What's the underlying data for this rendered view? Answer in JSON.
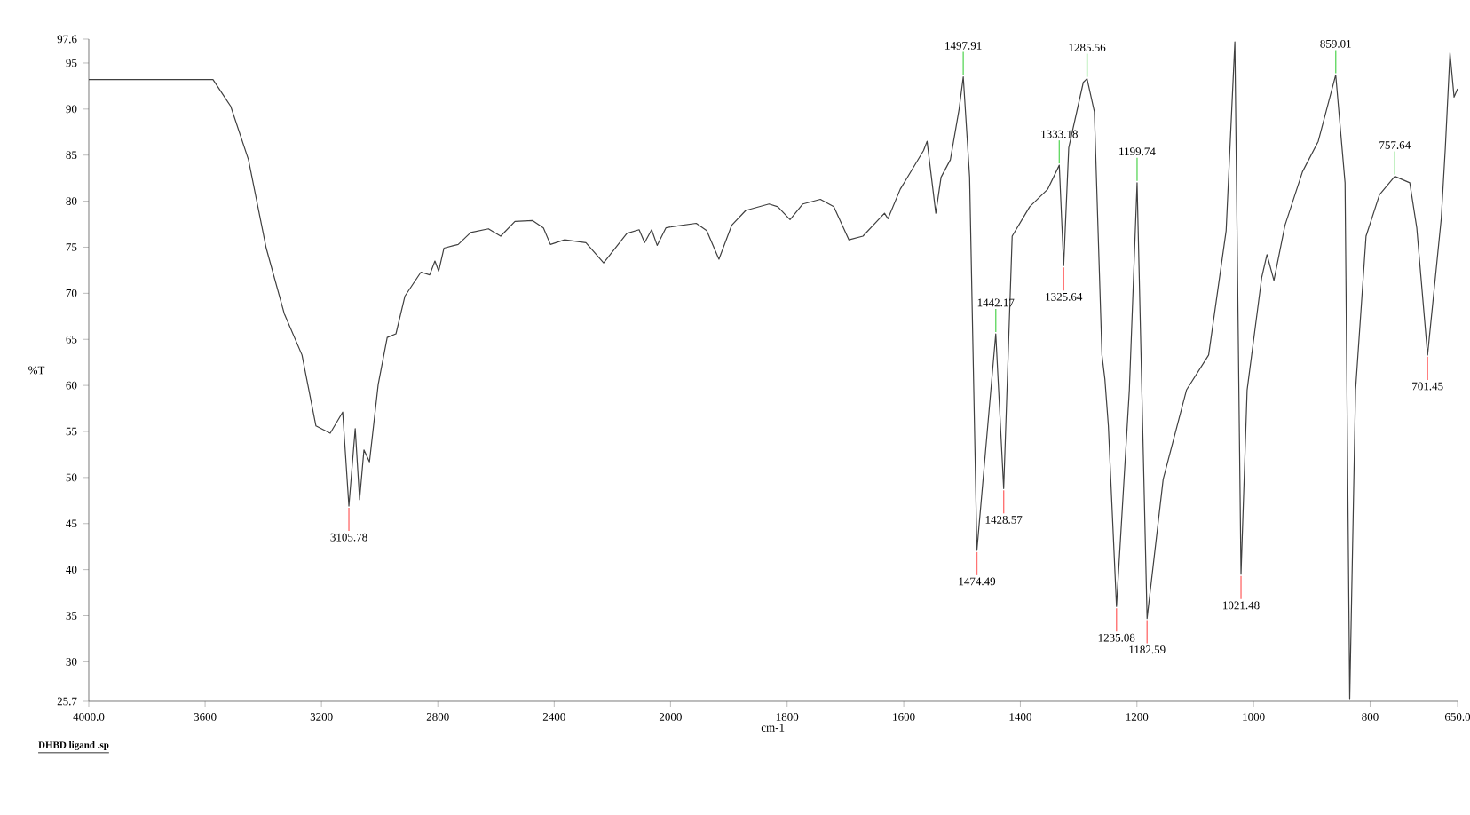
{
  "chart_data": [
    {
      "type": "line",
      "ylabel": "%T",
      "xlim": [
        4000,
        2000
      ],
      "ylim": [
        25.7,
        97.6
      ],
      "xticks": [
        {
          "value": 4000,
          "label": "4000.0"
        },
        3600,
        3200,
        2800,
        2400,
        2000
      ],
      "yticks": [
        25.7,
        30,
        35,
        40,
        45,
        50,
        55,
        60,
        65,
        70,
        75,
        80,
        85,
        90,
        95,
        97.6
      ],
      "series": [
        {
          "color": "#404040",
          "x": [
            4000,
            3573,
            3512,
            3451,
            3390,
            3328,
            3267,
            3219,
            3170,
            3127,
            3105.78,
            3084,
            3069,
            3054,
            3035,
            3005,
            2974,
            2944,
            2913,
            2858,
            2828,
            2810,
            2797,
            2779,
            2730,
            2687,
            2626,
            2584,
            2535,
            2474,
            2437,
            2413,
            2364,
            2291,
            2230,
            2150,
            2108,
            2089,
            2065,
            2046,
            2016,
            2000
          ],
          "values": [
            93.2,
            93.2,
            90.3,
            84.5,
            74.9,
            67.8,
            63.3,
            55.6,
            54.8,
            57.1,
            46.9,
            55.3,
            47.6,
            53.0,
            51.7,
            60.1,
            65.2,
            65.6,
            69.7,
            72.3,
            72.0,
            73.5,
            72.4,
            74.9,
            75.3,
            76.6,
            77.0,
            76.2,
            77.8,
            77.9,
            77.1,
            75.3,
            75.8,
            75.5,
            73.3,
            76.5,
            76.9,
            75.5,
            76.9,
            75.2,
            77.1,
            77.2
          ]
        }
      ],
      "annotations": [
        {
          "text": "3105.78",
          "x": 3105.78,
          "y": 46.9
        },
        "DHBD ligand .sp"
      ]
    },
    {
      "type": "line",
      "xlabel": "cm-1",
      "tick_labels": "x",
      "xlim": [
        2000,
        650
      ],
      "ylim": [
        25.7,
        97.6
      ],
      "xticks": [
        1800,
        1600,
        1400,
        1200,
        1000,
        800,
        {
          "value": 650,
          "label": "650.0"
        }
      ],
      "series": [
        {
          "color": "#404040",
          "x": [
            2000,
            1956,
            1938,
            1917,
            1895,
            1871,
            1831,
            1816,
            1795,
            1773,
            1743,
            1720,
            1694,
            1670,
            1633,
            1627,
            1606,
            1566,
            1560,
            1545,
            1536,
            1520,
            1505,
            1497.91,
            1487,
            1474.49,
            1442.17,
            1428.57,
            1414,
            1384,
            1353,
            1333.18,
            1325.64,
            1317,
            1292,
            1285.56,
            1273,
            1260,
            1255,
            1249,
            1235.08,
            1213,
            1199.74,
            1182.59,
            1155,
            1115,
            1077,
            1047,
            1032,
            1021.48,
            1011,
            986,
            977,
            965,
            946,
            916,
            889,
            859.01,
            843,
            835,
            825,
            807,
            784,
            757.64,
            732,
            720,
            701.45,
            678,
            671,
            663,
            656,
            650
          ],
          "values": [
            77.2,
            77.6,
            76.8,
            73.7,
            77.4,
            79.0,
            79.7,
            79.4,
            78.0,
            79.7,
            80.2,
            79.4,
            75.8,
            76.2,
            78.7,
            78.1,
            81.3,
            85.5,
            86.5,
            78.7,
            82.6,
            84.5,
            90.0,
            93.5,
            82.6,
            42.1,
            65.6,
            48.8,
            76.2,
            79.4,
            81.3,
            83.9,
            73.0,
            85.8,
            92.9,
            93.3,
            89.7,
            63.3,
            60.7,
            55.6,
            36.0,
            59.5,
            82.0,
            34.7,
            49.8,
            59.5,
            63.3,
            76.8,
            97.3,
            39.5,
            59.5,
            71.7,
            74.2,
            71.4,
            77.4,
            83.2,
            86.5,
            93.7,
            82.0,
            26.0,
            59.5,
            76.2,
            80.7,
            82.7,
            82.0,
            77.1,
            63.3,
            78.1,
            85.8,
            96.1,
            91.3,
            92.2
          ]
        }
      ],
      "annotations": [
        {
          "text": "1497.91",
          "x": 1497.91,
          "y": 93.5
        },
        {
          "text": "1474.49",
          "x": 1474.49,
          "y": 42.1
        },
        {
          "text": "1442.17",
          "x": 1442.17,
          "y": 65.6
        },
        {
          "text": "1428.57",
          "x": 1428.57,
          "y": 48.8
        },
        {
          "text": "1333.18",
          "x": 1333.18,
          "y": 83.9
        },
        {
          "text": "1325.64",
          "x": 1325.64,
          "y": 73.0
        },
        {
          "text": "1285.56",
          "x": 1285.56,
          "y": 93.3
        },
        {
          "text": "1235.08",
          "x": 1235.08,
          "y": 36.0
        },
        {
          "text": "1199.74",
          "x": 1199.74,
          "y": 82.0
        },
        {
          "text": "1182.59",
          "x": 1182.59,
          "y": 34.7
        },
        {
          "text": "1021.48",
          "x": 1021.48,
          "y": 39.5
        },
        {
          "text": "859.01",
          "x": 859.01,
          "y": 93.7
        },
        {
          "text": "757.64",
          "x": 757.64,
          "y": 82.7
        },
        {
          "text": "701.45",
          "x": 701.45,
          "y": 63.3
        }
      ]
    }
  ]
}
